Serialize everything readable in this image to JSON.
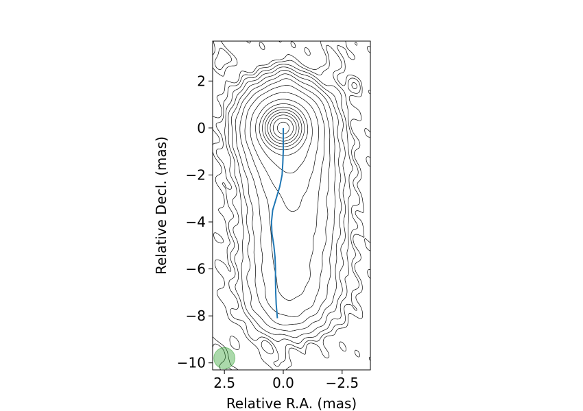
{
  "chart_data": {
    "type": "contour",
    "title": "",
    "xlabel": "Relative R.A. (mas)",
    "ylabel": "Relative Decl. (mas)",
    "x_inverted": true,
    "xlim": [
      3.0,
      -3.7
    ],
    "ylim": [
      -10.3,
      3.7
    ],
    "grid": false,
    "x_ticks": [
      {
        "value": 2.5,
        "label": "2.5"
      },
      {
        "value": 0.0,
        "label": "0.0"
      },
      {
        "value": -2.5,
        "label": "−2.5"
      }
    ],
    "y_ticks": [
      {
        "value": 2,
        "label": "2"
      },
      {
        "value": 0,
        "label": "0"
      },
      {
        "value": -2,
        "label": "−2"
      },
      {
        "value": -4,
        "label": "−4"
      },
      {
        "value": -6,
        "label": "−6"
      },
      {
        "value": -8,
        "label": "−8"
      },
      {
        "value": -10,
        "label": "−10"
      }
    ],
    "core_position": [
      0.0,
      0.0
    ],
    "ridge_line": {
      "color": "#1f77b4",
      "points": [
        [
          0.0,
          0.0
        ],
        [
          0.0,
          -0.5
        ],
        [
          0.0,
          -1.0
        ],
        [
          0.02,
          -1.5
        ],
        [
          0.05,
          -2.0
        ],
        [
          0.15,
          -2.5
        ],
        [
          0.3,
          -3.0
        ],
        [
          0.45,
          -3.5
        ],
        [
          0.5,
          -4.0
        ],
        [
          0.48,
          -4.5
        ],
        [
          0.4,
          -5.0
        ],
        [
          0.35,
          -5.5
        ],
        [
          0.33,
          -6.0
        ],
        [
          0.33,
          -6.5
        ],
        [
          0.32,
          -7.0
        ],
        [
          0.3,
          -7.5
        ],
        [
          0.25,
          -8.1
        ]
      ]
    },
    "beam": {
      "center": [
        2.5,
        -9.8
      ],
      "major_mas": 0.9,
      "minor_mas": 0.9,
      "color": "#2ca02c"
    }
  }
}
